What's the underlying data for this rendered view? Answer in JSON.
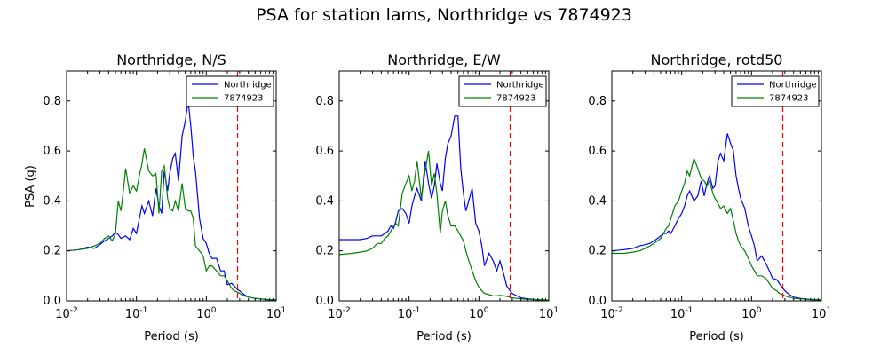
{
  "suptitle": "PSA for station lams, Northridge vs 7874923",
  "colors": {
    "Northridge": "#0000ff",
    "7874923": "#008000",
    "marker": "#ff0000"
  },
  "chart_data": [
    {
      "type": "line",
      "title": "Northridge, N/S",
      "xlabel": "Period (s)",
      "ylabel": "PSA (g)",
      "xscale": "log",
      "xlim": [
        0.01,
        10
      ],
      "ylim": [
        0,
        0.92
      ],
      "xticks": [
        0.01,
        0.1,
        1,
        10
      ],
      "yticks": [
        0,
        0.2,
        0.4,
        0.6,
        0.8
      ],
      "vline": 2.8,
      "legend": "top-right",
      "series": [
        {
          "name": "Northridge",
          "x": [
            0.01,
            0.015,
            0.02,
            0.025,
            0.03,
            0.035,
            0.04,
            0.045,
            0.05,
            0.055,
            0.06,
            0.065,
            0.07,
            0.08,
            0.09,
            0.1,
            0.11,
            0.12,
            0.13,
            0.15,
            0.17,
            0.19,
            0.21,
            0.23,
            0.25,
            0.28,
            0.3,
            0.33,
            0.36,
            0.4,
            0.45,
            0.5,
            0.55,
            0.6,
            0.65,
            0.7,
            0.8,
            0.9,
            1.0,
            1.1,
            1.2,
            1.4,
            1.6,
            1.8,
            2.0,
            2.3,
            2.5,
            2.8,
            3.0,
            3.5,
            4.0,
            5.0,
            6.0,
            7.5,
            10.0
          ],
          "y": [
            0.2,
            0.205,
            0.215,
            0.21,
            0.225,
            0.24,
            0.25,
            0.26,
            0.275,
            0.265,
            0.25,
            0.255,
            0.26,
            0.245,
            0.29,
            0.27,
            0.33,
            0.38,
            0.35,
            0.4,
            0.34,
            0.45,
            0.38,
            0.35,
            0.52,
            0.44,
            0.51,
            0.57,
            0.59,
            0.48,
            0.66,
            0.72,
            0.8,
            0.7,
            0.58,
            0.52,
            0.33,
            0.25,
            0.23,
            0.19,
            0.17,
            0.17,
            0.12,
            0.12,
            0.065,
            0.07,
            0.06,
            0.045,
            0.04,
            0.025,
            0.015,
            0.01,
            0.008,
            0.005,
            0.004
          ]
        },
        {
          "name": "7874923",
          "x": [
            0.01,
            0.015,
            0.02,
            0.025,
            0.03,
            0.035,
            0.04,
            0.045,
            0.05,
            0.055,
            0.06,
            0.065,
            0.07,
            0.08,
            0.09,
            0.1,
            0.11,
            0.12,
            0.13,
            0.15,
            0.17,
            0.19,
            0.21,
            0.23,
            0.25,
            0.28,
            0.3,
            0.33,
            0.36,
            0.4,
            0.45,
            0.5,
            0.55,
            0.6,
            0.65,
            0.7,
            0.8,
            0.9,
            1.0,
            1.1,
            1.2,
            1.4,
            1.6,
            1.8,
            2.0,
            2.3,
            2.5,
            2.8,
            3.0,
            3.5,
            4.0,
            5.0,
            6.0,
            7.5,
            10.0
          ],
          "y": [
            0.2,
            0.205,
            0.21,
            0.22,
            0.23,
            0.25,
            0.26,
            0.24,
            0.27,
            0.4,
            0.36,
            0.44,
            0.53,
            0.43,
            0.46,
            0.44,
            0.5,
            0.55,
            0.61,
            0.52,
            0.5,
            0.51,
            0.35,
            0.52,
            0.54,
            0.41,
            0.37,
            0.36,
            0.4,
            0.36,
            0.47,
            0.37,
            0.36,
            0.36,
            0.33,
            0.22,
            0.2,
            0.18,
            0.12,
            0.14,
            0.14,
            0.12,
            0.1,
            0.1,
            0.08,
            0.05,
            0.04,
            0.035,
            0.03,
            0.02,
            0.015,
            0.01,
            0.008,
            0.005,
            0.004
          ]
        }
      ]
    },
    {
      "type": "line",
      "title": "Northridge, E/W",
      "xlabel": "Period (s)",
      "ylabel": "",
      "xscale": "log",
      "xlim": [
        0.01,
        10
      ],
      "ylim": [
        0,
        0.92
      ],
      "xticks": [
        0.01,
        0.1,
        1,
        10
      ],
      "yticks": [
        0,
        0.2,
        0.4,
        0.6,
        0.8
      ],
      "vline": 2.8,
      "legend": "top-right",
      "series": [
        {
          "name": "Northridge",
          "x": [
            0.01,
            0.015,
            0.02,
            0.025,
            0.03,
            0.035,
            0.04,
            0.045,
            0.05,
            0.055,
            0.06,
            0.065,
            0.07,
            0.08,
            0.09,
            0.1,
            0.11,
            0.12,
            0.13,
            0.15,
            0.17,
            0.19,
            0.21,
            0.23,
            0.25,
            0.28,
            0.3,
            0.33,
            0.36,
            0.4,
            0.45,
            0.5,
            0.55,
            0.6,
            0.65,
            0.7,
            0.8,
            0.9,
            1.0,
            1.1,
            1.2,
            1.4,
            1.6,
            1.8,
            2.0,
            2.3,
            2.5,
            2.8,
            3.0,
            3.5,
            4.0,
            5.0,
            6.0,
            7.5,
            10.0
          ],
          "y": [
            0.245,
            0.245,
            0.245,
            0.25,
            0.26,
            0.26,
            0.26,
            0.27,
            0.28,
            0.3,
            0.29,
            0.32,
            0.36,
            0.37,
            0.35,
            0.31,
            0.38,
            0.42,
            0.45,
            0.4,
            0.56,
            0.47,
            0.41,
            0.46,
            0.55,
            0.47,
            0.44,
            0.57,
            0.63,
            0.66,
            0.74,
            0.74,
            0.53,
            0.43,
            0.36,
            0.39,
            0.45,
            0.31,
            0.28,
            0.22,
            0.14,
            0.19,
            0.16,
            0.12,
            0.16,
            0.1,
            0.06,
            0.04,
            0.03,
            0.02,
            0.012,
            0.008,
            0.006,
            0.004,
            0.003
          ]
        },
        {
          "name": "7874923",
          "x": [
            0.01,
            0.015,
            0.02,
            0.025,
            0.03,
            0.035,
            0.04,
            0.045,
            0.05,
            0.055,
            0.06,
            0.065,
            0.07,
            0.08,
            0.09,
            0.1,
            0.11,
            0.12,
            0.13,
            0.15,
            0.17,
            0.19,
            0.21,
            0.23,
            0.25,
            0.28,
            0.3,
            0.33,
            0.36,
            0.4,
            0.45,
            0.5,
            0.55,
            0.6,
            0.65,
            0.7,
            0.8,
            0.9,
            1.0,
            1.1,
            1.2,
            1.4,
            1.6,
            1.8,
            2.0,
            2.3,
            2.5,
            2.8,
            3.0,
            3.5,
            4.0,
            5.0,
            6.0,
            7.5,
            10.0
          ],
          "y": [
            0.185,
            0.19,
            0.195,
            0.2,
            0.21,
            0.23,
            0.23,
            0.25,
            0.26,
            0.28,
            0.3,
            0.31,
            0.3,
            0.43,
            0.47,
            0.5,
            0.44,
            0.48,
            0.56,
            0.41,
            0.52,
            0.6,
            0.46,
            0.51,
            0.43,
            0.27,
            0.36,
            0.4,
            0.34,
            0.3,
            0.3,
            0.28,
            0.26,
            0.24,
            0.2,
            0.17,
            0.12,
            0.08,
            0.055,
            0.04,
            0.03,
            0.025,
            0.02,
            0.02,
            0.022,
            0.02,
            0.018,
            0.015,
            0.012,
            0.01,
            0.008,
            0.006,
            0.005,
            0.004,
            0.003
          ]
        }
      ]
    },
    {
      "type": "line",
      "title": "Northridge, rotd50",
      "xlabel": "Period (s)",
      "ylabel": "",
      "xscale": "log",
      "xlim": [
        0.01,
        10
      ],
      "ylim": [
        0,
        0.92
      ],
      "xticks": [
        0.01,
        0.1,
        1,
        10
      ],
      "yticks": [
        0,
        0.2,
        0.4,
        0.6,
        0.8
      ],
      "vline": 2.8,
      "legend": "top-right",
      "series": [
        {
          "name": "Northridge",
          "x": [
            0.01,
            0.015,
            0.02,
            0.025,
            0.03,
            0.035,
            0.04,
            0.045,
            0.05,
            0.055,
            0.06,
            0.065,
            0.07,
            0.08,
            0.09,
            0.1,
            0.11,
            0.12,
            0.13,
            0.15,
            0.17,
            0.19,
            0.21,
            0.23,
            0.25,
            0.28,
            0.3,
            0.33,
            0.36,
            0.4,
            0.45,
            0.5,
            0.55,
            0.6,
            0.65,
            0.7,
            0.8,
            0.9,
            1.0,
            1.1,
            1.2,
            1.4,
            1.6,
            1.8,
            2.0,
            2.3,
            2.5,
            2.8,
            3.0,
            3.5,
            4.0,
            5.0,
            6.0,
            7.5,
            10.0
          ],
          "y": [
            0.2,
            0.205,
            0.21,
            0.22,
            0.225,
            0.23,
            0.24,
            0.25,
            0.26,
            0.27,
            0.27,
            0.28,
            0.27,
            0.3,
            0.33,
            0.35,
            0.38,
            0.42,
            0.44,
            0.4,
            0.42,
            0.48,
            0.42,
            0.47,
            0.5,
            0.45,
            0.46,
            0.56,
            0.59,
            0.56,
            0.67,
            0.63,
            0.6,
            0.5,
            0.45,
            0.41,
            0.37,
            0.3,
            0.26,
            0.22,
            0.16,
            0.18,
            0.15,
            0.12,
            0.09,
            0.085,
            0.07,
            0.05,
            0.04,
            0.025,
            0.015,
            0.01,
            0.007,
            0.005,
            0.004
          ]
        },
        {
          "name": "7874923",
          "x": [
            0.01,
            0.015,
            0.02,
            0.025,
            0.03,
            0.035,
            0.04,
            0.045,
            0.05,
            0.055,
            0.06,
            0.065,
            0.07,
            0.08,
            0.09,
            0.1,
            0.11,
            0.12,
            0.13,
            0.15,
            0.17,
            0.19,
            0.21,
            0.23,
            0.25,
            0.28,
            0.3,
            0.33,
            0.36,
            0.4,
            0.45,
            0.5,
            0.55,
            0.6,
            0.65,
            0.7,
            0.8,
            0.9,
            1.0,
            1.1,
            1.2,
            1.4,
            1.6,
            1.8,
            2.0,
            2.3,
            2.5,
            2.8,
            3.0,
            3.5,
            4.0,
            5.0,
            6.0,
            7.5,
            10.0
          ],
          "y": [
            0.19,
            0.19,
            0.195,
            0.2,
            0.21,
            0.22,
            0.23,
            0.24,
            0.25,
            0.27,
            0.29,
            0.3,
            0.33,
            0.38,
            0.4,
            0.44,
            0.47,
            0.52,
            0.5,
            0.57,
            0.53,
            0.49,
            0.48,
            0.46,
            0.48,
            0.43,
            0.41,
            0.39,
            0.37,
            0.38,
            0.35,
            0.37,
            0.32,
            0.27,
            0.24,
            0.22,
            0.2,
            0.17,
            0.14,
            0.12,
            0.1,
            0.1,
            0.09,
            0.07,
            0.05,
            0.04,
            0.03,
            0.025,
            0.02,
            0.015,
            0.01,
            0.008,
            0.006,
            0.005,
            0.004
          ]
        }
      ]
    }
  ]
}
